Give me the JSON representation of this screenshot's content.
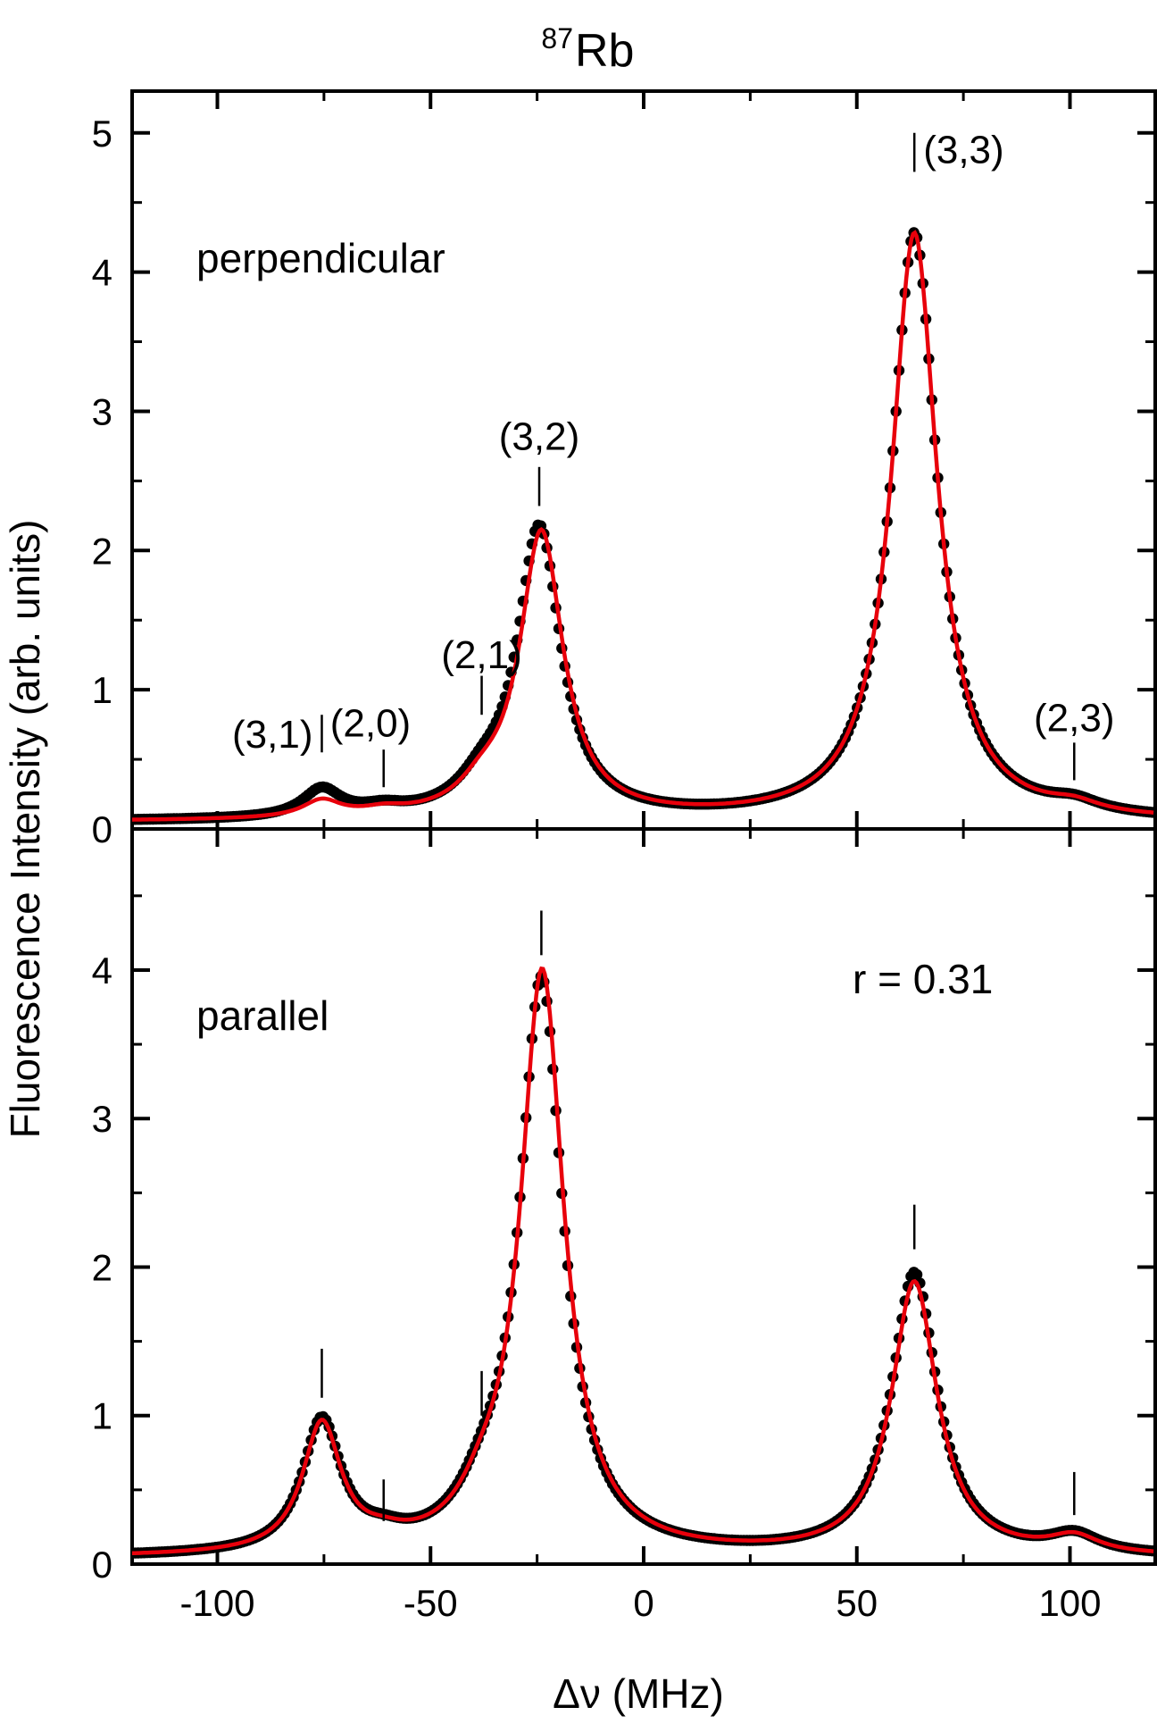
{
  "title": {
    "sup": "87",
    "main": "Rb"
  },
  "xlabel": "Δν (MHz)",
  "ylabel": "Fluorescence Intensity (arb. units)",
  "x_ticks": [
    "-100",
    "-50",
    "0",
    "50",
    "100"
  ],
  "colors": {
    "data": "#000000",
    "fit": "#e8000b",
    "axis": "#000000"
  },
  "chart_data": [
    {
      "type": "scatter+line",
      "panel": "top",
      "label": "perpendicular",
      "xlim": [
        -120,
        120
      ],
      "ylim": [
        0,
        5.3
      ],
      "y_ticks": [
        "0",
        "1",
        "2",
        "3",
        "4",
        "5"
      ],
      "peaks": [
        {
          "center": -75.5,
          "amp": 0.2,
          "width": 5.5
        },
        {
          "center": -61.0,
          "amp": 0.05,
          "width": 6.0
        },
        {
          "center": -38.0,
          "amp": 0.16,
          "width": 6.5
        },
        {
          "center": -24.5,
          "amp": 2.08,
          "width": 6.2
        },
        {
          "center": 63.5,
          "amp": 4.22,
          "width": 6.5
        },
        {
          "center": 101.0,
          "amp": 0.07,
          "width": 7.0
        }
      ],
      "fit_peaks": [
        {
          "center": -75.5,
          "amp": 0.12,
          "width": 5.5
        },
        {
          "center": -61.0,
          "amp": 0.04,
          "width": 6.0
        },
        {
          "center": -38.0,
          "amp": 0.14,
          "width": 6.5
        },
        {
          "center": -24.0,
          "amp": 2.05,
          "width": 6.2
        },
        {
          "center": 63.5,
          "amp": 4.22,
          "width": 6.5
        },
        {
          "center": 101.0,
          "amp": 0.06,
          "width": 7.0
        }
      ],
      "baseline": 0.05,
      "markers": [
        {
          "x": -75.5,
          "y0": 0.55,
          "y1": 0.82,
          "label": "(3,1)",
          "label_side": "left",
          "label_y": 0.68
        },
        {
          "x": -61.0,
          "y0": 0.3,
          "y1": 0.57,
          "label": "(2,0)",
          "label_side": "right-up",
          "label_y": 0.76
        },
        {
          "x": -38.0,
          "y0": 0.82,
          "y1": 1.1,
          "label": "(2,1)",
          "label_side": "above",
          "label_y": 1.25
        },
        {
          "x": -24.5,
          "y0": 2.32,
          "y1": 2.6,
          "label": "(3,2)",
          "label_side": "above",
          "label_y": 2.82
        },
        {
          "x": 63.5,
          "y0": 4.72,
          "y1": 5.0,
          "label": "(3,3)",
          "label_side": "right",
          "label_y": 4.88
        },
        {
          "x": 101.0,
          "y0": 0.35,
          "y1": 0.62,
          "label": "(2,3)",
          "label_side": "above",
          "label_y": 0.8
        }
      ]
    },
    {
      "type": "scatter+line",
      "panel": "bottom",
      "label": "parallel",
      "annotation": "r = 0.31",
      "xlim": [
        -120,
        120
      ],
      "ylim": [
        0,
        4.95
      ],
      "y_ticks": [
        "0",
        "1",
        "2",
        "3",
        "4"
      ],
      "peaks": [
        {
          "center": -75.5,
          "amp": 0.88,
          "width": 5.5
        },
        {
          "center": -61.0,
          "amp": 0.06,
          "width": 6.0
        },
        {
          "center": -38.0,
          "amp": 0.2,
          "width": 6.5
        },
        {
          "center": -24.0,
          "amp": 3.86,
          "width": 6.2
        },
        {
          "center": 63.5,
          "amp": 1.9,
          "width": 6.5
        },
        {
          "center": 101.0,
          "amp": 0.12,
          "width": 7.0
        }
      ],
      "fit_peaks": [
        {
          "center": -75.5,
          "amp": 0.86,
          "width": 5.5
        },
        {
          "center": -61.0,
          "amp": 0.05,
          "width": 6.0
        },
        {
          "center": -38.0,
          "amp": 0.18,
          "width": 6.5
        },
        {
          "center": -23.8,
          "amp": 3.92,
          "width": 6.2
        },
        {
          "center": 63.5,
          "amp": 1.84,
          "width": 6.5
        },
        {
          "center": 101.0,
          "amp": 0.11,
          "width": 7.0
        }
      ],
      "baseline": 0.04,
      "markers": [
        {
          "x": -75.5,
          "y0": 1.12,
          "y1": 1.45
        },
        {
          "x": -61.0,
          "y0": 0.29,
          "y1": 0.57
        },
        {
          "x": -38.0,
          "y0": 1.0,
          "y1": 1.3
        },
        {
          "x": -24.0,
          "y0": 4.1,
          "y1": 4.4
        },
        {
          "x": 63.5,
          "y0": 2.12,
          "y1": 2.42
        },
        {
          "x": 101.0,
          "y0": 0.33,
          "y1": 0.62
        }
      ]
    }
  ]
}
